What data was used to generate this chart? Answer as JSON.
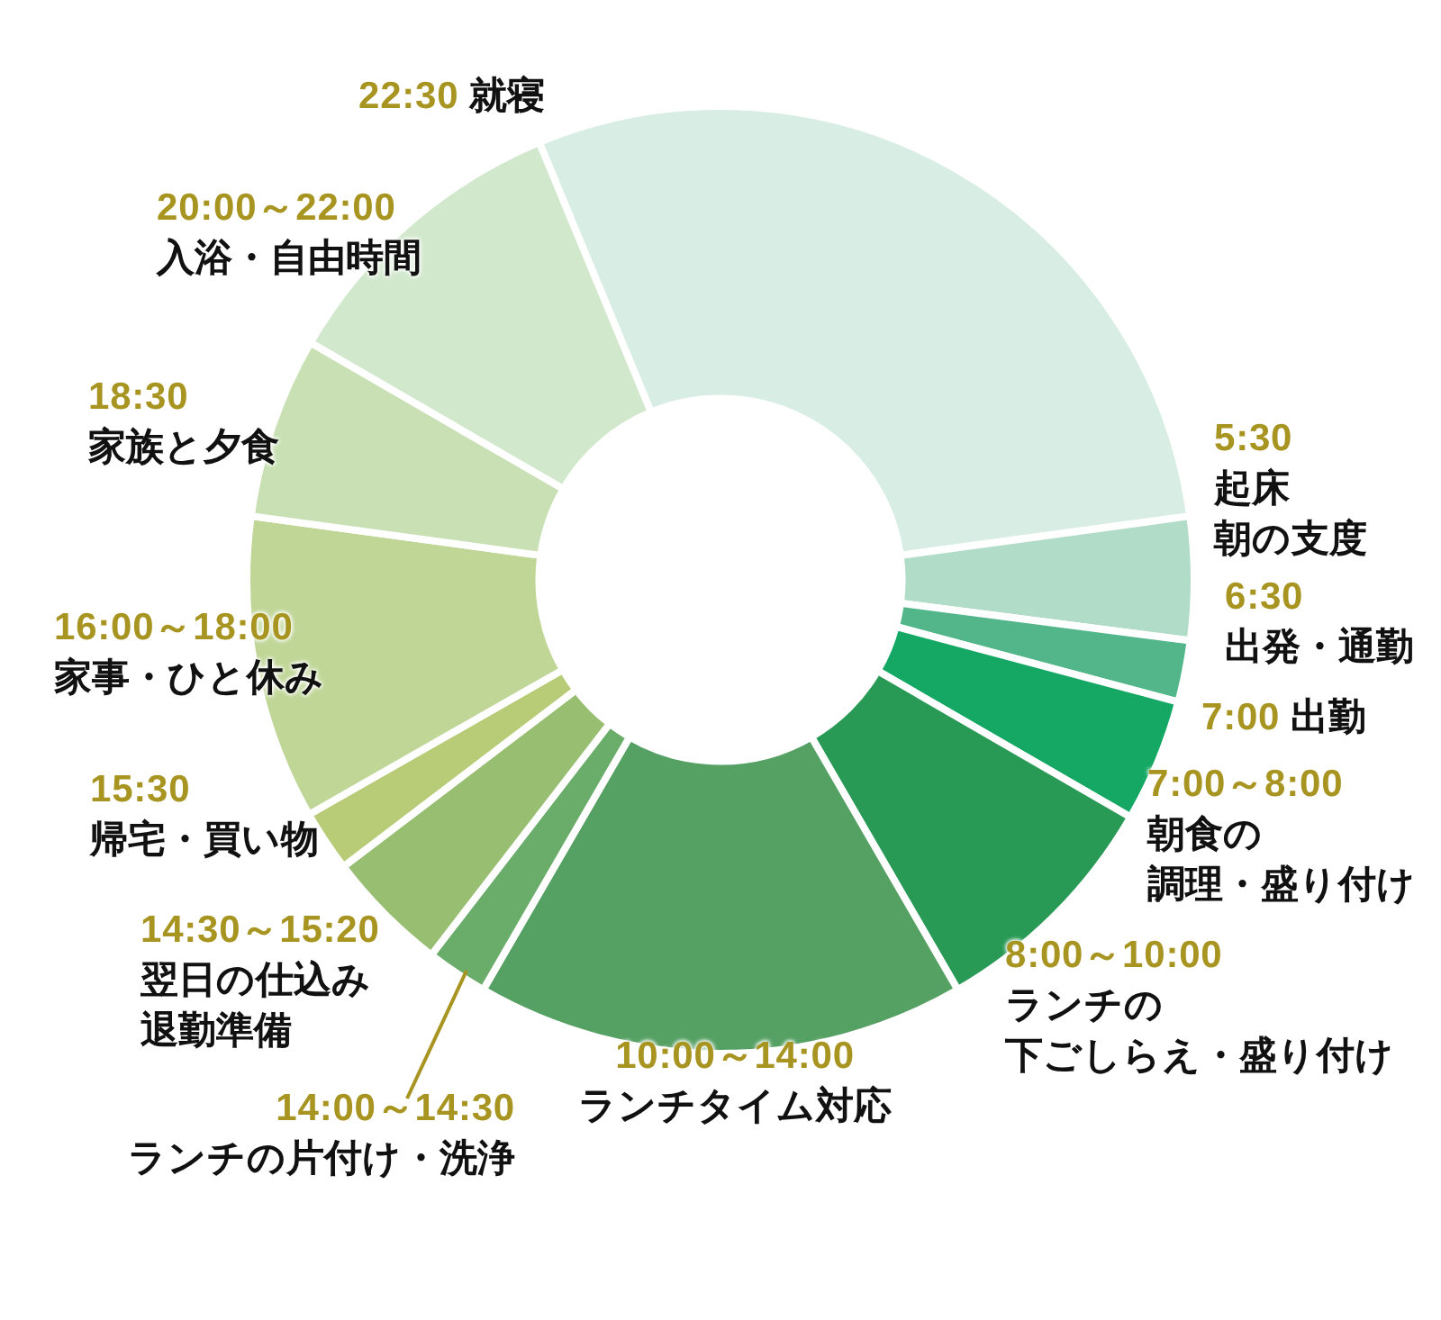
{
  "chart_data": {
    "type": "donut",
    "categories": [
      "22:30 就寝",
      "5:30\n起床朝の支度",
      "6:30\n出発・通勤",
      "7:00～8:00\n朝食の調理・盛り付け",
      "8:00～10:00\nランチの下ごしらえ・盛り付け",
      "10:00～14:00\nランチタイム対応",
      "14:00～14:30\nランチの片付け・洗浄",
      "14:30～15:20\n翌日の仕込み退勤準備",
      "15:30\n帰宅・買い物",
      "16:00～18:00\n家事・ひと休み",
      "18:30\n家族と夕食",
      "20:00～22:00\n入浴・自由時間"
    ],
    "values": [
      29.1,
      4.2,
      2.1,
      4.2,
      8.3,
      16.7,
      2.1,
      4.2,
      2.1,
      10.4,
      6.2,
      10.4
    ],
    "colors": [
      "#d8eee4",
      "#b0dcc8",
      "#52b68a",
      "#14a864",
      "#289a55",
      "#55a063",
      "#6aad6a",
      "#98be72",
      "#b8cc78",
      "#c0d697",
      "#c8e0b4",
      "#d2e8cc"
    ],
    "annotations": [
      "7:00 出勤"
    ]
  }
}
